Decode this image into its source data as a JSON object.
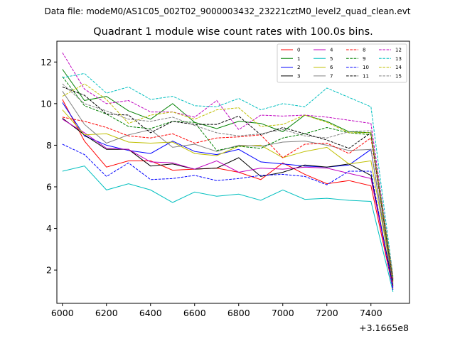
{
  "chart_data": {
    "type": "line",
    "suptitle": "Data file: modeM0/AS1C05_002T02_9000003432_23221cztM0_level2_quad_clean.evt",
    "title": "Quadrant 1 module wise count rates with 100.0s bins.",
    "xlabel": "",
    "ylabel": "",
    "x_offset_label": "+3.1665e8",
    "xlim": [
      5975,
      7575
    ],
    "ylim": [
      0.4,
      13.0
    ],
    "xticks": [
      6000,
      6200,
      6400,
      6600,
      6800,
      7000,
      7200,
      7400
    ],
    "yticks": [
      2,
      4,
      6,
      8,
      10,
      12
    ],
    "legend_position": "upper right",
    "legend_columns": 4,
    "x": [
      6000,
      6100,
      6200,
      6300,
      6400,
      6500,
      6600,
      6700,
      6800,
      6900,
      7000,
      7100,
      7200,
      7300,
      7400,
      7500
    ],
    "series": [
      {
        "name": "0",
        "color": "#ff0000",
        "style": "solid",
        "values": [
          10.2,
          8.2,
          6.95,
          7.25,
          7.25,
          6.8,
          6.85,
          6.9,
          6.7,
          6.35,
          7.15,
          6.6,
          6.15,
          6.3,
          6.05,
          1.1
        ]
      },
      {
        "name": "1",
        "color": "#008000",
        "style": "solid",
        "values": [
          11.65,
          10.15,
          10.35,
          9.65,
          9.25,
          10.0,
          9.1,
          8.8,
          9.15,
          9.05,
          8.65,
          9.45,
          9.15,
          8.65,
          8.6,
          1.3
        ]
      },
      {
        "name": "2",
        "color": "#0000ff",
        "style": "solid",
        "values": [
          10.05,
          8.45,
          8.0,
          7.75,
          7.6,
          8.2,
          7.7,
          7.55,
          7.8,
          7.2,
          7.1,
          7.0,
          6.95,
          7.05,
          7.8,
          1.2
        ]
      },
      {
        "name": "3",
        "color": "#000000",
        "style": "solid",
        "values": [
          9.3,
          8.5,
          7.8,
          7.8,
          7.0,
          7.1,
          6.85,
          6.9,
          7.4,
          6.5,
          6.7,
          7.05,
          6.95,
          7.1,
          6.55,
          1.25
        ]
      },
      {
        "name": "4",
        "color": "#bf00bf",
        "style": "solid",
        "values": [
          9.25,
          8.6,
          7.85,
          7.8,
          7.2,
          7.15,
          6.85,
          7.25,
          6.7,
          6.9,
          6.85,
          6.95,
          6.9,
          6.65,
          6.4,
          1.15
        ]
      },
      {
        "name": "5",
        "color": "#00bfbf",
        "style": "solid",
        "values": [
          6.75,
          7.0,
          5.85,
          6.15,
          5.85,
          5.25,
          5.75,
          5.55,
          5.65,
          5.35,
          5.85,
          5.4,
          5.45,
          5.35,
          5.3,
          0.95
        ]
      },
      {
        "name": "6",
        "color": "#bfbf00",
        "style": "solid",
        "values": [
          9.7,
          8.5,
          8.55,
          8.15,
          8.1,
          8.15,
          7.6,
          7.5,
          7.95,
          8.0,
          7.4,
          7.7,
          7.9,
          7.1,
          7.25,
          1.4
        ]
      },
      {
        "name": "7",
        "color": "#808080",
        "style": "solid",
        "values": [
          10.6,
          9.0,
          8.1,
          8.5,
          8.75,
          7.9,
          8.05,
          7.7,
          8.0,
          7.95,
          8.15,
          8.2,
          8.0,
          7.75,
          7.8,
          1.35
        ]
      },
      {
        "name": "8",
        "color": "#ff0000",
        "style": "dashed",
        "values": [
          9.35,
          9.15,
          8.85,
          8.45,
          8.35,
          8.55,
          8.1,
          8.35,
          8.4,
          8.5,
          7.4,
          8.05,
          8.1,
          7.6,
          8.35,
          1.45
        ]
      },
      {
        "name": "9",
        "color": "#008000",
        "style": "dashed",
        "values": [
          11.3,
          9.9,
          9.5,
          8.9,
          8.8,
          9.15,
          9.1,
          7.75,
          7.95,
          7.85,
          8.35,
          8.55,
          8.85,
          8.6,
          8.5,
          1.5
        ]
      },
      {
        "name": "10",
        "color": "#0000ff",
        "style": "dashed",
        "values": [
          8.05,
          7.55,
          6.5,
          7.15,
          6.35,
          6.4,
          6.55,
          6.3,
          6.4,
          6.55,
          6.6,
          6.5,
          6.1,
          6.75,
          6.75,
          1.05
        ]
      },
      {
        "name": "11",
        "color": "#000000",
        "style": "dashed",
        "values": [
          10.8,
          10.4,
          9.5,
          9.45,
          8.6,
          9.15,
          9.0,
          9.0,
          9.4,
          8.5,
          8.85,
          8.55,
          8.25,
          7.85,
          8.6,
          1.55
        ]
      },
      {
        "name": "12",
        "color": "#bf00bf",
        "style": "dashed",
        "values": [
          12.45,
          10.7,
          10.0,
          10.15,
          9.6,
          9.6,
          9.35,
          10.15,
          8.75,
          9.45,
          9.4,
          9.45,
          9.35,
          9.2,
          9.05,
          1.6
        ]
      },
      {
        "name": "13",
        "color": "#00bfbf",
        "style": "dashed",
        "values": [
          11.25,
          11.45,
          10.5,
          10.8,
          10.2,
          10.35,
          9.9,
          9.85,
          10.25,
          9.7,
          10.0,
          9.85,
          10.75,
          10.3,
          9.85,
          1.7
        ]
      },
      {
        "name": "14",
        "color": "#bfbf00",
        "style": "dashed",
        "values": [
          10.35,
          10.95,
          10.2,
          9.05,
          9.45,
          9.6,
          9.25,
          9.7,
          9.8,
          8.9,
          9.0,
          9.45,
          9.1,
          8.6,
          8.6,
          1.65
        ]
      },
      {
        "name": "15",
        "color": "#808080",
        "style": "dashed",
        "values": [
          10.95,
          10.0,
          9.65,
          9.25,
          9.15,
          9.35,
          8.95,
          8.6,
          8.45,
          8.55,
          8.75,
          8.45,
          8.35,
          8.65,
          8.7,
          1.75
        ]
      }
    ]
  }
}
